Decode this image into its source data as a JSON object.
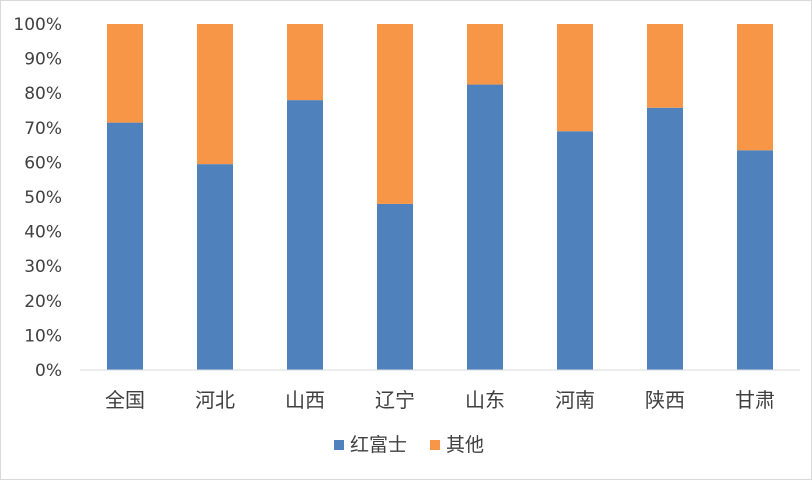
{
  "chart_data": {
    "type": "bar",
    "stacked": true,
    "percent": true,
    "title": "",
    "xlabel": "",
    "ylabel": "",
    "categories": [
      "全国",
      "河北",
      "山西",
      "辽宁",
      "山东",
      "河南",
      "陕西",
      "甘肃"
    ],
    "series": [
      {
        "name": "红富士",
        "color": "#4f81bd",
        "values": [
          71.5,
          59.5,
          78,
          48,
          82.5,
          69,
          75.8,
          63.5
        ]
      },
      {
        "name": "其他",
        "color": "#f79646",
        "values": [
          28.5,
          40.5,
          22,
          52,
          17.5,
          31,
          24.2,
          36.5
        ]
      }
    ],
    "ylim": [
      0,
      100
    ],
    "yticks": [
      "0%",
      "10%",
      "20%",
      "30%",
      "40%",
      "50%",
      "60%",
      "70%",
      "80%",
      "90%",
      "100%"
    ],
    "grid": false,
    "legend": "bottom",
    "axis_color": "#d9d9d9"
  }
}
